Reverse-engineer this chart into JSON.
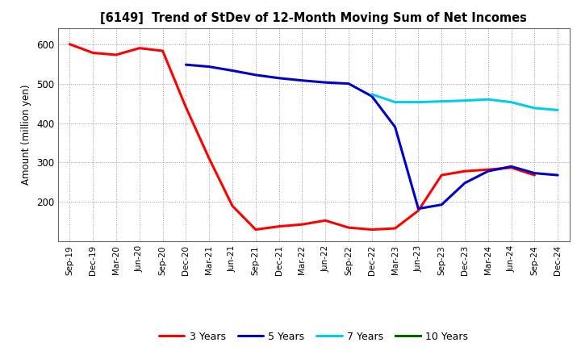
{
  "title": "[6149]  Trend of StDev of 12-Month Moving Sum of Net Incomes",
  "ylabel": "Amount (million yen)",
  "background_color": "#ffffff",
  "plot_bg_color": "#ffffff",
  "x_labels": [
    "Sep-19",
    "Dec-19",
    "Mar-20",
    "Jun-20",
    "Sep-20",
    "Dec-20",
    "Mar-21",
    "Jun-21",
    "Sep-21",
    "Dec-21",
    "Mar-22",
    "Jun-22",
    "Sep-22",
    "Dec-22",
    "Mar-23",
    "Jun-23",
    "Sep-23",
    "Dec-23",
    "Mar-24",
    "Jun-24",
    "Sep-24",
    "Dec-24"
  ],
  "ylim": [
    100,
    640
  ],
  "yticks": [
    200,
    300,
    400,
    500,
    600
  ],
  "series": {
    "3 Years": {
      "color": "#ff0000",
      "data_x": [
        0,
        1,
        2,
        3,
        4,
        5,
        6,
        7,
        8,
        9,
        10,
        11,
        12,
        13,
        14,
        15,
        16,
        17,
        18,
        19,
        20
      ],
      "data_y": [
        600,
        578,
        573,
        590,
        583,
        440,
        310,
        190,
        130,
        138,
        143,
        153,
        135,
        130,
        133,
        178,
        268,
        278,
        282,
        287,
        268
      ]
    },
    "5 Years": {
      "color": "#0000cc",
      "data_x": [
        5,
        6,
        7,
        8,
        9,
        10,
        11,
        12,
        13,
        14,
        15,
        16,
        17,
        18,
        19,
        20,
        21
      ],
      "data_y": [
        548,
        543,
        533,
        522,
        514,
        508,
        503,
        500,
        468,
        390,
        183,
        193,
        248,
        278,
        290,
        273,
        268
      ]
    },
    "7 Years": {
      "color": "#00ccee",
      "data_x": [
        13,
        14,
        15,
        16,
        17,
        18,
        19,
        20,
        21
      ],
      "data_y": [
        473,
        453,
        453,
        455,
        457,
        460,
        453,
        438,
        433
      ]
    },
    "10 Years": {
      "color": "#006600",
      "data_x": [],
      "data_y": []
    }
  },
  "legend_order": [
    "3 Years",
    "5 Years",
    "7 Years",
    "10 Years"
  ],
  "line_width": 2.2
}
